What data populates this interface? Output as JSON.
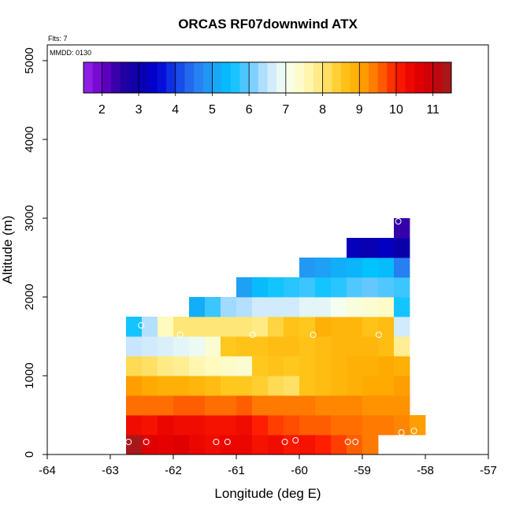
{
  "chart_data": {
    "type": "heatmap",
    "title": "ORCAS RF07downwind ATX",
    "annotations": [
      "Flts: 7",
      "MMDD: 0130"
    ],
    "xlabel": "Longitude (deg E)",
    "ylabel": "Altitude (m)",
    "xlim": [
      -64,
      -57
    ],
    "ylim": [
      0,
      5200
    ],
    "x_ticks": [
      -64,
      -63,
      -62,
      -61,
      -60,
      -59,
      -58,
      -57
    ],
    "y_ticks": [
      0,
      1000,
      2000,
      3000,
      4000,
      5000
    ],
    "colorbar": {
      "min": 1.5,
      "max": 11.5,
      "ticks": [
        2,
        3,
        4,
        5,
        6,
        7,
        8,
        9,
        10,
        11
      ]
    },
    "grid": {
      "x_start": -62.75,
      "dx": 0.25,
      "y_start": 0,
      "dy": 250
    },
    "rows": [
      {
        "alt": 0,
        "values": [
          11.4,
          10.6,
          10.5,
          10.6,
          10.4,
          10.3,
          10.4,
          10.4,
          10.2,
          10.3,
          10.1,
          10.2,
          10.0,
          9.8,
          9.6,
          9.4
        ]
      },
      {
        "alt": 250,
        "values": [
          10.3,
          10.2,
          10.4,
          10.3,
          10.3,
          10.2,
          10.2,
          10.3,
          10.0,
          9.8,
          9.7,
          9.6,
          9.6,
          9.5,
          9.5,
          9.4,
          9.4,
          9.3,
          9.1
        ]
      },
      {
        "alt": 500,
        "values": [
          9.5,
          9.5,
          9.5,
          9.6,
          9.6,
          9.5,
          9.5,
          9.6,
          9.4,
          9.4,
          9.4,
          9.4,
          9.3,
          9.3,
          9.3,
          9.2,
          9.2,
          9.2
        ]
      },
      {
        "alt": 750,
        "values": [
          9.1,
          9.0,
          8.9,
          8.9,
          8.8,
          8.7,
          8.5,
          8.5,
          8.4,
          8.2,
          8.1,
          8.6,
          8.7,
          8.8,
          8.9,
          9.0,
          9.0,
          9.1
        ]
      },
      {
        "alt": 1000,
        "values": [
          8.2,
          8.1,
          7.9,
          7.8,
          7.6,
          7.5,
          7.4,
          7.3,
          8.5,
          8.6,
          8.5,
          8.6,
          8.7,
          8.8,
          8.9,
          8.9,
          9.0,
          8.9
        ]
      },
      {
        "alt": 1250,
        "values": [
          6.5,
          6.6,
          6.7,
          6.8,
          6.9,
          7.3,
          8.5,
          8.6,
          8.6,
          8.7,
          8.7,
          8.6,
          8.7,
          8.8,
          8.8,
          8.8,
          8.7,
          7.8
        ]
      },
      {
        "alt": 1500,
        "values": [
          5.6,
          6.4,
          7.5,
          8.0,
          8.0,
          8.0,
          8.0,
          8.0,
          7.9,
          8.3,
          8.6,
          8.5,
          8.9,
          8.8,
          8.8,
          8.6,
          8.7,
          6.6
        ]
      },
      {
        "alt": 1750,
        "values": [
          null,
          null,
          null,
          null,
          5.2,
          5.8,
          6.3,
          6.4,
          6.6,
          6.6,
          6.6,
          6.8,
          6.8,
          7.0,
          7.2,
          7.3,
          7.4,
          5.6
        ]
      },
      {
        "alt": 2000,
        "values": [
          null,
          null,
          null,
          null,
          null,
          null,
          null,
          5.0,
          5.4,
          5.6,
          5.7,
          5.8,
          5.6,
          5.7,
          5.9,
          6.0,
          5.9,
          5.8
        ]
      },
      {
        "alt": 2250,
        "values": [
          null,
          null,
          null,
          null,
          null,
          null,
          null,
          null,
          null,
          null,
          null,
          4.9,
          5.0,
          5.2,
          5.3,
          5.5,
          5.4,
          4.6
        ]
      },
      {
        "alt": 2500,
        "values": [
          null,
          null,
          null,
          null,
          null,
          null,
          null,
          null,
          null,
          null,
          null,
          null,
          null,
          null,
          3.2,
          3.1,
          3.3,
          3.0
        ]
      },
      {
        "alt": 2750,
        "values": [
          null,
          null,
          null,
          null,
          null,
          null,
          null,
          null,
          null,
          null,
          null,
          null,
          null,
          null,
          null,
          null,
          null,
          2.4
        ]
      }
    ],
    "markers": [
      [
        -62.71,
        160
      ],
      [
        -62.43,
        160
      ],
      [
        -62.51,
        1640
      ],
      [
        -61.89,
        1520
      ],
      [
        -61.32,
        160
      ],
      [
        -61.14,
        160
      ],
      [
        -60.74,
        1520
      ],
      [
        -60.23,
        160
      ],
      [
        -60.06,
        180
      ],
      [
        -59.78,
        1520
      ],
      [
        -59.23,
        160
      ],
      [
        -59.11,
        160
      ],
      [
        -58.74,
        1520
      ],
      [
        -58.43,
        2960
      ],
      [
        -58.38,
        280
      ],
      [
        -58.18,
        300
      ]
    ]
  }
}
